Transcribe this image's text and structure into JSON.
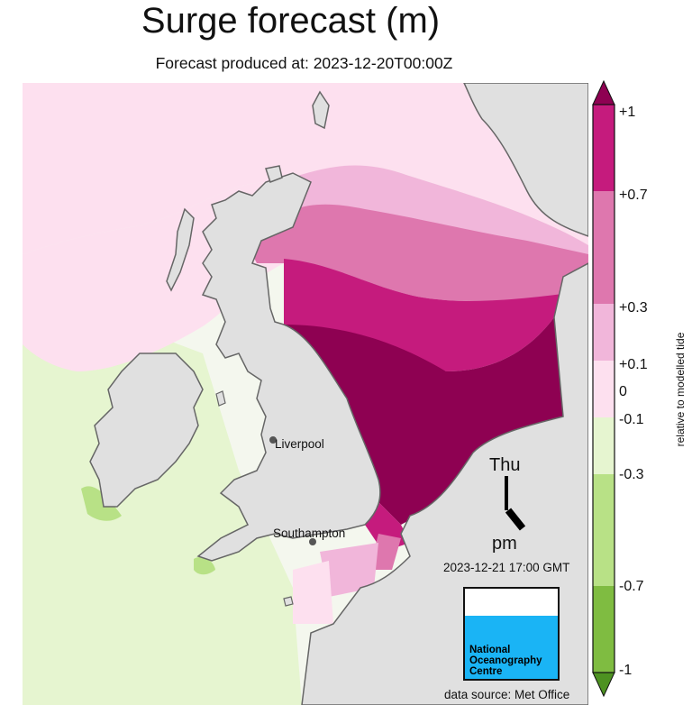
{
  "header": {
    "title": "Surge forecast (m)",
    "subtitle": "Forecast produced at: 2023-12-20T00:00Z"
  },
  "map": {
    "cities": [
      {
        "name": "Liverpool"
      },
      {
        "name": "Southampton"
      }
    ],
    "colors": {
      "sea_base": "#f4f7ee",
      "land": "#e0e0e0",
      "coast": "#666666"
    }
  },
  "valid_time": {
    "day": "Thu",
    "period": "pm",
    "timestamp": "2023-12-21 17:00 GMT"
  },
  "logo": {
    "text_lines": [
      "National",
      "Oceanography",
      "Centre"
    ],
    "color": "#1ab4f5"
  },
  "source": "data source: Met Office",
  "colorbar": {
    "label": "relative to modelled tide",
    "ticks": [
      "+1",
      "+0.7",
      "+0.3",
      "+0.1",
      "0",
      "-0.1",
      "-0.3",
      "-0.7",
      "-1"
    ],
    "bands": [
      {
        "range": "+0.7 to +1",
        "color": "#c51b7d"
      },
      {
        "range": "+0.3 to +0.7",
        "color": "#de77ae"
      },
      {
        "range": "+0.1 to +0.3",
        "color": "#f1b6da"
      },
      {
        "range": "0 to +0.1",
        "color": "#fde0ef"
      },
      {
        "range": "-0.1 to 0",
        "color": "#f7f7f7"
      },
      {
        "range": "-0.3 to -0.1",
        "color": "#e6f5d0"
      },
      {
        "range": "-0.7 to -0.3",
        "color": "#b8e186"
      },
      {
        "range": "-1 to -0.7",
        "color": "#7fbc41"
      }
    ],
    "over_color": "#8e0152",
    "under_color": "#4d9221"
  }
}
